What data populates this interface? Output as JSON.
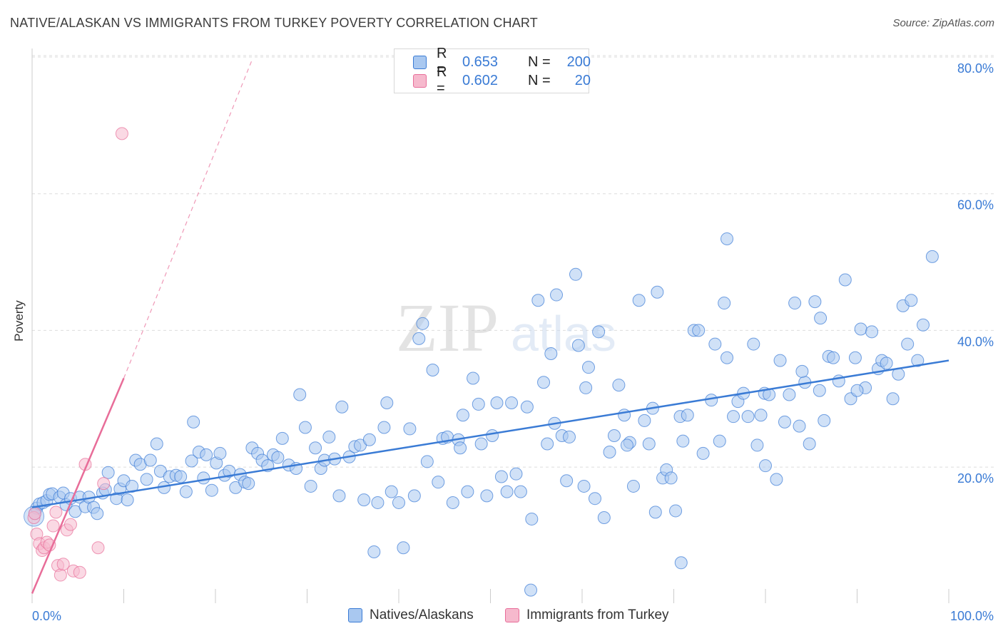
{
  "title": "NATIVE/ALASKAN VS IMMIGRANTS FROM TURKEY POVERTY CORRELATION CHART",
  "source": "Source: ZipAtlas.com",
  "watermark": {
    "zip": "ZIP",
    "atlas": "atlas"
  },
  "colors": {
    "blue": "#3a7bd5",
    "blue_fill": "#a9c8f0",
    "pink": "#e86d99",
    "pink_fill": "#f6b9cd",
    "grid": "#dddddd"
  },
  "legend_top": {
    "rows": [
      {
        "r_label": "R =",
        "r_value": "0.653",
        "n_label": "N =",
        "n_value": "200"
      },
      {
        "r_label": "R =",
        "r_value": "0.602",
        "n_label": "N =",
        "n_value": "20"
      }
    ]
  },
  "legend_bottom": {
    "series_a": "Natives/Alaskans",
    "series_b": "Immigrants from Turkey"
  },
  "chart_data": {
    "type": "scatter",
    "title": "NATIVE/ALASKAN VS IMMIGRANTS FROM TURKEY POVERTY CORRELATION CHART",
    "xlabel": "",
    "ylabel": "Poverty",
    "xlim": [
      0,
      100
    ],
    "ylim": [
      0,
      82
    ],
    "x_tick_labels": [
      "0.0%",
      "100.0%"
    ],
    "y_tick_labels": [
      "20.0%",
      "40.0%",
      "60.0%",
      "80.0%"
    ],
    "y_ticks": [
      20,
      40,
      60,
      80
    ],
    "grid": true,
    "series": [
      {
        "name": "Natives/Alaskans",
        "r": 0.653,
        "n": 200,
        "trend": {
          "x": [
            0,
            100
          ],
          "y": [
            14.1,
            35.6
          ]
        },
        "points": [
          [
            0.3,
            13.2
          ],
          [
            0.5,
            14.0
          ],
          [
            0.8,
            14.6
          ],
          [
            1.2,
            14.8
          ],
          [
            1.6,
            15.1
          ],
          [
            1.9,
            16.0
          ],
          [
            2.2,
            16.1
          ],
          [
            3.0,
            15.6
          ],
          [
            3.4,
            16.2
          ],
          [
            3.7,
            14.5
          ],
          [
            4.2,
            15.4
          ],
          [
            4.7,
            13.5
          ],
          [
            5.2,
            15.6
          ],
          [
            5.8,
            14.2
          ],
          [
            6.2,
            15.6
          ],
          [
            6.7,
            14.1
          ],
          [
            7.1,
            13.2
          ],
          [
            7.7,
            16.2
          ],
          [
            8.0,
            16.7
          ],
          [
            8.3,
            19.2
          ],
          [
            9.2,
            15.4
          ],
          [
            9.6,
            16.8
          ],
          [
            10.0,
            18.0
          ],
          [
            10.4,
            15.2
          ],
          [
            10.9,
            17.2
          ],
          [
            11.3,
            21.0
          ],
          [
            11.8,
            20.4
          ],
          [
            12.5,
            18.2
          ],
          [
            12.9,
            21.0
          ],
          [
            13.6,
            23.4
          ],
          [
            14.0,
            19.4
          ],
          [
            14.4,
            17.0
          ],
          [
            15.0,
            18.6
          ],
          [
            15.7,
            18.8
          ],
          [
            16.2,
            18.6
          ],
          [
            16.8,
            16.4
          ],
          [
            17.4,
            20.9
          ],
          [
            17.6,
            26.6
          ],
          [
            18.2,
            22.2
          ],
          [
            18.7,
            18.4
          ],
          [
            19.0,
            21.8
          ],
          [
            19.6,
            16.6
          ],
          [
            20.1,
            20.6
          ],
          [
            20.5,
            22.0
          ],
          [
            21.0,
            18.8
          ],
          [
            21.5,
            19.4
          ],
          [
            22.2,
            17.0
          ],
          [
            22.7,
            18.9
          ],
          [
            23.2,
            17.8
          ],
          [
            23.6,
            17.6
          ],
          [
            24.0,
            22.8
          ],
          [
            24.6,
            22.0
          ],
          [
            25.1,
            21.0
          ],
          [
            25.7,
            20.2
          ],
          [
            26.3,
            21.8
          ],
          [
            26.8,
            21.4
          ],
          [
            27.3,
            24.2
          ],
          [
            28.0,
            20.3
          ],
          [
            28.8,
            19.8
          ],
          [
            29.2,
            30.6
          ],
          [
            29.8,
            25.8
          ],
          [
            30.4,
            17.2
          ],
          [
            30.9,
            22.8
          ],
          [
            31.5,
            19.8
          ],
          [
            31.9,
            21.0
          ],
          [
            32.4,
            24.4
          ],
          [
            33.0,
            21.2
          ],
          [
            33.5,
            15.8
          ],
          [
            33.8,
            28.8
          ],
          [
            34.6,
            21.5
          ],
          [
            35.2,
            23.0
          ],
          [
            35.8,
            23.2
          ],
          [
            36.2,
            15.2
          ],
          [
            36.8,
            24.0
          ],
          [
            37.3,
            7.6
          ],
          [
            37.7,
            14.8
          ],
          [
            38.4,
            25.8
          ],
          [
            38.7,
            29.4
          ],
          [
            39.2,
            16.4
          ],
          [
            40.0,
            14.8
          ],
          [
            40.5,
            8.2
          ],
          [
            41.2,
            25.6
          ],
          [
            41.7,
            15.8
          ],
          [
            42.2,
            38.8
          ],
          [
            42.6,
            41.0
          ],
          [
            43.1,
            20.8
          ],
          [
            43.7,
            34.2
          ],
          [
            44.3,
            17.8
          ],
          [
            44.8,
            24.2
          ],
          [
            45.3,
            24.4
          ],
          [
            45.9,
            14.8
          ],
          [
            46.5,
            24.0
          ],
          [
            47.0,
            27.6
          ],
          [
            47.5,
            16.4
          ],
          [
            48.1,
            33.0
          ],
          [
            48.7,
            29.2
          ],
          [
            49.0,
            23.4
          ],
          [
            49.6,
            15.8
          ],
          [
            50.2,
            24.6
          ],
          [
            50.7,
            29.4
          ],
          [
            51.2,
            18.6
          ],
          [
            51.8,
            16.4
          ],
          [
            52.3,
            29.4
          ],
          [
            52.8,
            19.0
          ],
          [
            53.3,
            16.4
          ],
          [
            54.0,
            28.8
          ],
          [
            54.5,
            12.4
          ],
          [
            55.2,
            44.4
          ],
          [
            55.8,
            32.4
          ],
          [
            56.2,
            23.4
          ],
          [
            56.6,
            36.6
          ],
          [
            57.2,
            45.2
          ],
          [
            57.8,
            24.6
          ],
          [
            58.3,
            18.0
          ],
          [
            58.6,
            24.4
          ],
          [
            59.3,
            48.2
          ],
          [
            59.6,
            37.8
          ],
          [
            60.2,
            17.2
          ],
          [
            60.7,
            34.6
          ],
          [
            61.4,
            15.4
          ],
          [
            61.8,
            39.8
          ],
          [
            62.4,
            12.6
          ],
          [
            63.0,
            22.2
          ],
          [
            63.5,
            24.6
          ],
          [
            64.0,
            32.0
          ],
          [
            64.6,
            27.6
          ],
          [
            65.2,
            23.6
          ],
          [
            65.6,
            17.2
          ],
          [
            66.2,
            44.4
          ],
          [
            66.8,
            26.8
          ],
          [
            67.3,
            23.4
          ],
          [
            67.7,
            28.6
          ],
          [
            68.2,
            45.6
          ],
          [
            68.8,
            18.4
          ],
          [
            69.2,
            19.6
          ],
          [
            69.7,
            18.4
          ],
          [
            70.2,
            13.6
          ],
          [
            70.7,
            27.4
          ],
          [
            71.0,
            23.8
          ],
          [
            71.5,
            27.6
          ],
          [
            72.2,
            40.0
          ],
          [
            72.7,
            40.0
          ],
          [
            73.2,
            22.0
          ],
          [
            74.1,
            29.8
          ],
          [
            74.5,
            38.0
          ],
          [
            75.0,
            23.8
          ],
          [
            75.5,
            44.0
          ],
          [
            75.8,
            36.0
          ],
          [
            76.5,
            27.4
          ],
          [
            77.0,
            29.6
          ],
          [
            77.6,
            30.8
          ],
          [
            78.1,
            27.4
          ],
          [
            78.7,
            38.0
          ],
          [
            79.1,
            23.2
          ],
          [
            79.5,
            27.6
          ],
          [
            79.9,
            30.8
          ],
          [
            80.4,
            30.6
          ],
          [
            81.2,
            18.2
          ],
          [
            81.6,
            35.6
          ],
          [
            82.1,
            26.6
          ],
          [
            82.6,
            30.6
          ],
          [
            83.2,
            44.0
          ],
          [
            83.7,
            26.0
          ],
          [
            84.3,
            32.4
          ],
          [
            84.8,
            23.4
          ],
          [
            85.4,
            44.2
          ],
          [
            85.9,
            31.2
          ],
          [
            86.4,
            26.8
          ],
          [
            86.9,
            36.2
          ],
          [
            87.4,
            36.0
          ],
          [
            88.0,
            32.6
          ],
          [
            88.7,
            47.4
          ],
          [
            89.3,
            30.0
          ],
          [
            89.8,
            36.0
          ],
          [
            90.4,
            40.2
          ],
          [
            90.9,
            31.6
          ],
          [
            91.6,
            39.8
          ],
          [
            92.3,
            34.4
          ],
          [
            92.7,
            35.6
          ],
          [
            93.2,
            35.2
          ],
          [
            93.9,
            30.0
          ],
          [
            94.5,
            33.6
          ],
          [
            95.0,
            43.6
          ],
          [
            95.5,
            38.0
          ],
          [
            95.9,
            44.4
          ],
          [
            96.6,
            35.6
          ],
          [
            97.2,
            40.8
          ],
          [
            98.2,
            50.8
          ],
          [
            75.8,
            53.4
          ],
          [
            54.4,
            2.0
          ],
          [
            70.8,
            6.0
          ],
          [
            60.4,
            31.6
          ],
          [
            46.7,
            22.8
          ],
          [
            64.9,
            23.2
          ],
          [
            57.0,
            26.4
          ],
          [
            68.0,
            13.4
          ],
          [
            80.0,
            20.2
          ],
          [
            86.0,
            41.8
          ],
          [
            90.0,
            31.2
          ],
          [
            84.0,
            34.0
          ]
        ]
      },
      {
        "name": "Immigrants from Turkey",
        "r": 0.602,
        "n": 20,
        "trend": {
          "x": [
            0,
            10
          ],
          "y": [
            1.5,
            33.0
          ]
        },
        "trend_dashed": {
          "x": [
            10,
            24
          ],
          "y": [
            33.0,
            79.6
          ]
        },
        "points": [
          [
            0.2,
            12.6
          ],
          [
            0.3,
            13.2
          ],
          [
            0.5,
            10.2
          ],
          [
            0.8,
            8.8
          ],
          [
            1.1,
            7.8
          ],
          [
            1.3,
            8.2
          ],
          [
            1.6,
            9.0
          ],
          [
            1.9,
            8.6
          ],
          [
            2.3,
            11.4
          ],
          [
            2.6,
            13.4
          ],
          [
            2.8,
            5.6
          ],
          [
            3.1,
            4.2
          ],
          [
            3.4,
            5.8
          ],
          [
            3.8,
            10.8
          ],
          [
            4.2,
            11.6
          ],
          [
            4.5,
            4.8
          ],
          [
            5.2,
            4.6
          ],
          [
            5.8,
            20.4
          ],
          [
            7.2,
            8.2
          ],
          [
            7.8,
            17.6
          ],
          [
            9.8,
            68.8
          ]
        ]
      }
    ]
  }
}
